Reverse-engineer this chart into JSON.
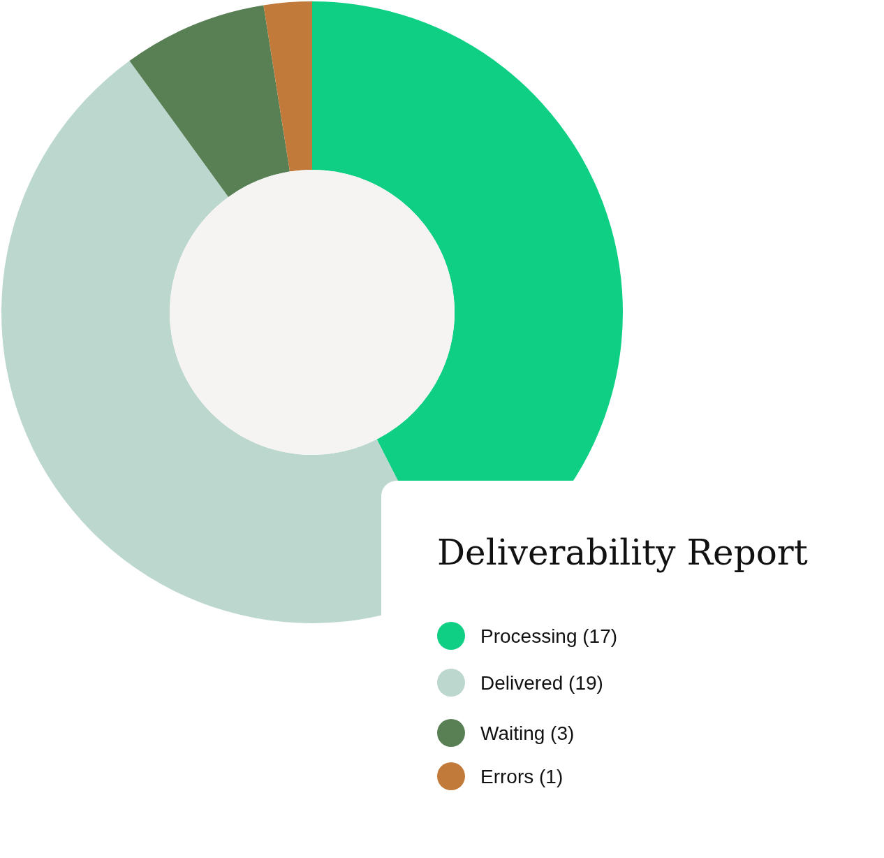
{
  "chart_data": {
    "type": "donut",
    "title": "Deliverability Report",
    "categories": [
      "Processing (17)",
      "Delivered (19)",
      "Waiting (3)",
      "Errors (1)"
    ],
    "values": [
      17,
      19,
      3,
      1
    ],
    "colors": [
      "#0ecf84",
      "#bcd7ce",
      "#598055",
      "#c27a3b"
    ],
    "legend": "bottom right"
  }
}
